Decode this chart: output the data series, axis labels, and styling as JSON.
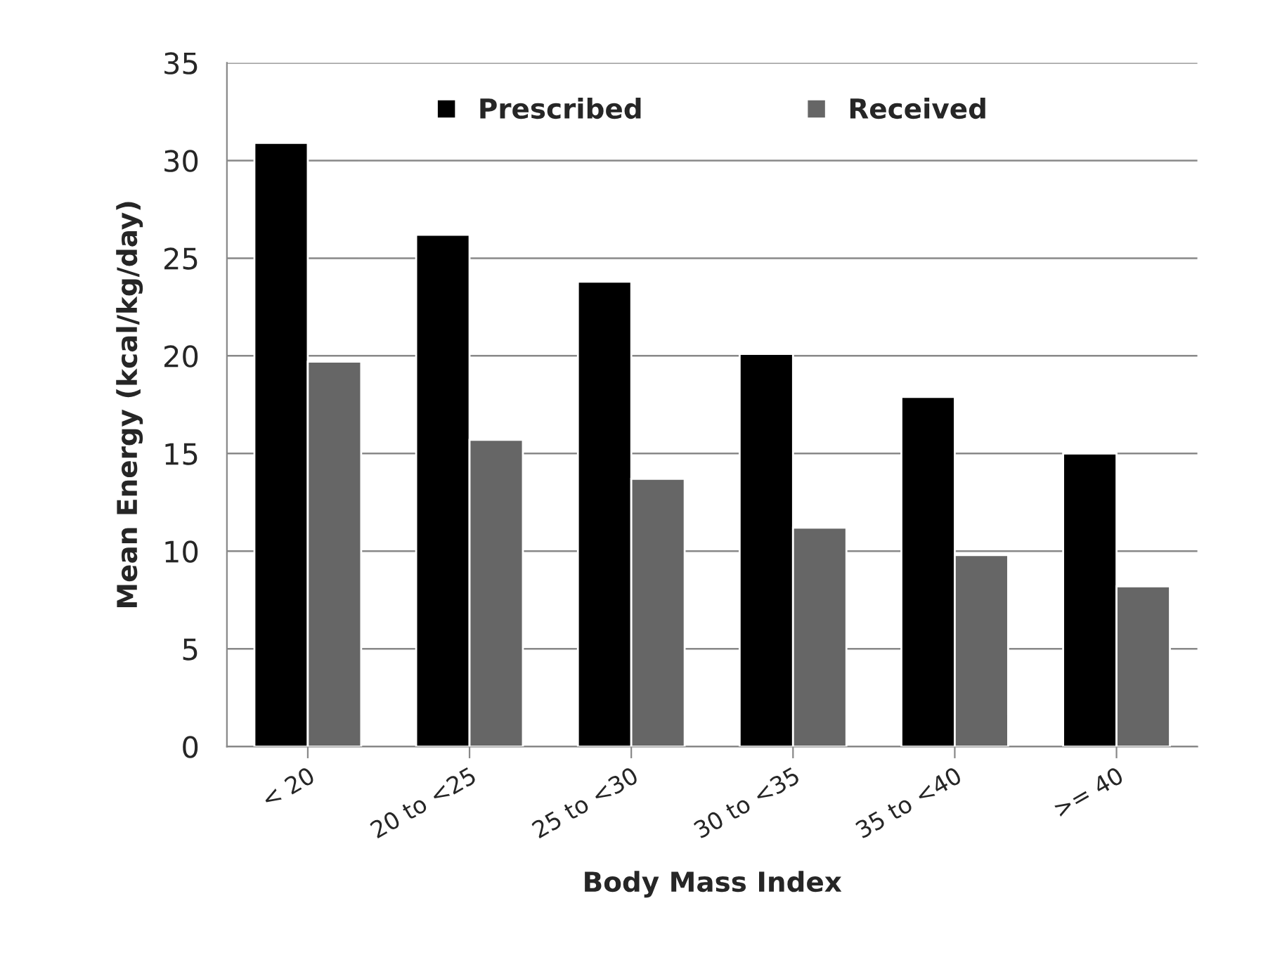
{
  "chart_data": {
    "type": "bar",
    "xlabel": "Body Mass Index",
    "ylabel": "Mean Energy (kcal/kg/day)",
    "categories": [
      "< 20",
      "20 to <25",
      "25 to <30",
      "30 to <35",
      "35 to <40",
      ">= 40"
    ],
    "series": [
      {
        "name": "Prescribed",
        "color": "#000000",
        "values": [
          30.9,
          26.2,
          23.8,
          20.1,
          17.9,
          15.0
        ]
      },
      {
        "name": "Received",
        "color": "#666666",
        "values": [
          19.7,
          15.7,
          13.7,
          11.2,
          9.8,
          8.2
        ]
      }
    ],
    "ylim": [
      0,
      35
    ],
    "yticks": [
      0,
      5,
      10,
      15,
      20,
      25,
      30,
      35
    ],
    "grid": "y",
    "legend": "top"
  }
}
